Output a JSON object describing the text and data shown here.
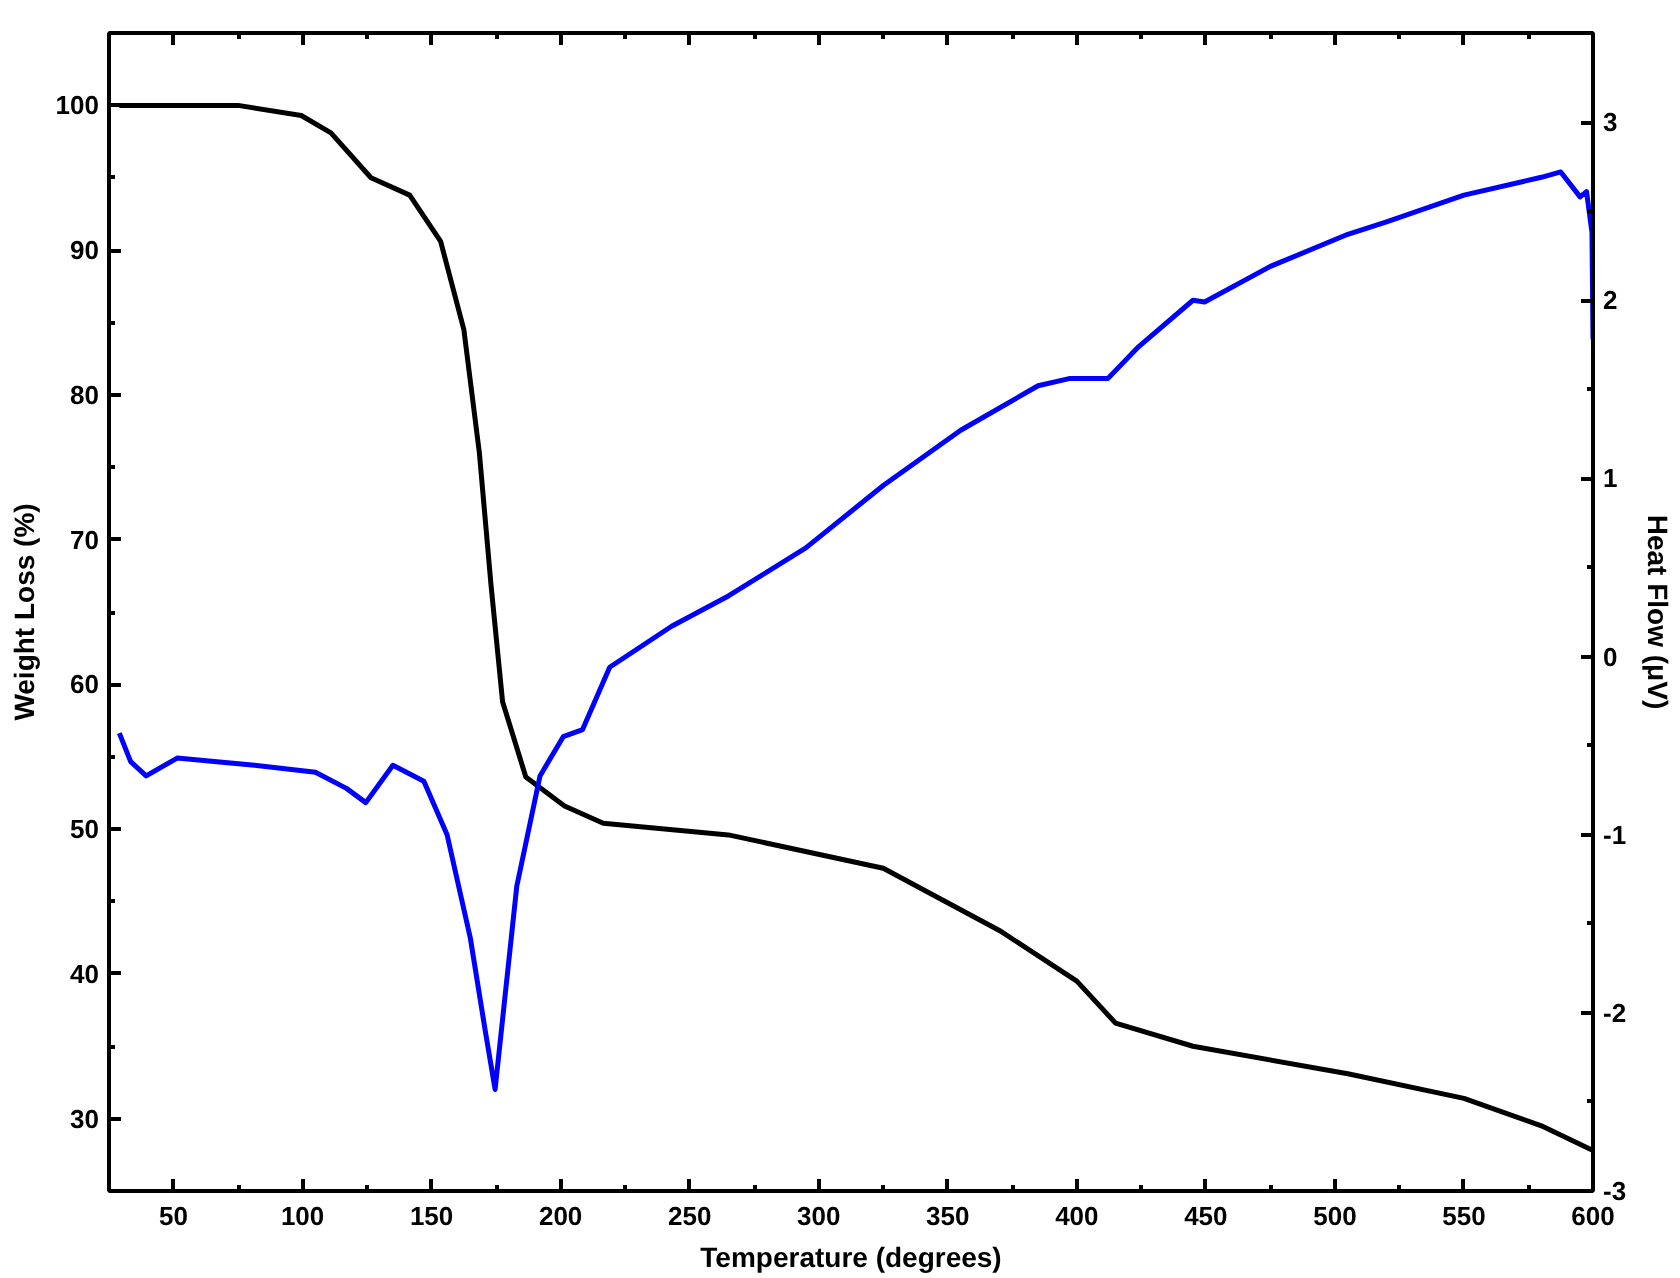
{
  "chart_data": {
    "type": "line",
    "xlabel": "Temperature (degrees)",
    "ylabel": "Weight Loss (%)",
    "y2label": "Heat Flow (μV)",
    "xlim": [
      25,
      600
    ],
    "ylim": [
      25,
      105
    ],
    "y2lim": [
      -3,
      3.5
    ],
    "xticks": [
      50,
      {
        "value": 75,
        "label": null
      },
      100,
      {
        "value": 125,
        "label": null
      },
      150,
      {
        "value": 175,
        "label": null
      },
      200,
      {
        "value": 225,
        "label": null
      },
      250,
      {
        "value": 275,
        "label": null
      },
      300,
      {
        "value": 325,
        "label": null
      },
      350,
      {
        "value": 375,
        "label": null
      },
      400,
      {
        "value": 425,
        "label": null
      },
      450,
      {
        "value": 475,
        "label": null
      },
      500,
      {
        "value": 525,
        "label": null
      },
      550,
      {
        "value": 575,
        "label": null
      },
      600
    ],
    "yticks": [
      30,
      {
        "value": 35,
        "label": null
      },
      40,
      {
        "value": 45,
        "label": null
      },
      50,
      {
        "value": 55,
        "label": null
      },
      60,
      {
        "value": 65,
        "label": null
      },
      70,
      {
        "value": 75,
        "label": null
      },
      80,
      {
        "value": 85,
        "label": null
      },
      90,
      {
        "value": 95,
        "label": null
      },
      100
    ],
    "y2ticks": [
      -3,
      {
        "value": -2.5,
        "label": null
      },
      -2,
      {
        "value": -1.5,
        "label": null
      },
      -1,
      {
        "value": -0.5,
        "label": null
      },
      0,
      {
        "value": 0.5,
        "label": null
      },
      1,
      {
        "value": 1.5,
        "label": null
      },
      2,
      {
        "value": 2.5,
        "label": null
      },
      3
    ],
    "grid": false,
    "marker": "none",
    "line_style": "solid",
    "series": [
      {
        "color": "#000000",
        "x": [
          29,
          75,
          99.5,
          111,
          126.5,
          141.5,
          153.5,
          162.5,
          168.5,
          173,
          177.5,
          186.5,
          201.5,
          216.5,
          265,
          325,
          370,
          400,
          415,
          445,
          505,
          550,
          580,
          600
        ],
        "values": [
          100,
          100,
          99.3,
          98.1,
          95,
          93.8,
          90.6,
          84.5,
          76,
          66.9,
          58.8,
          53.6,
          51.6,
          50.4,
          49.6,
          47.3,
          43,
          39.5,
          36.6,
          35,
          33.1,
          31.4,
          29.5,
          27.8
        ]
      },
      {
        "color": "#0000ff",
        "axis": "y2",
        "x": [
          29,
          33.4,
          39.4,
          51.4,
          81.4,
          105,
          117,
          124.5,
          135,
          147,
          156,
          165,
          171,
          174.6,
          178.5,
          183,
          192,
          201,
          208.5,
          219,
          243,
          265,
          295,
          325,
          355,
          385,
          397,
          412,
          424,
          445,
          449.5,
          475,
          505,
          520,
          550,
          580,
          587.5,
          595,
          597.5,
          599.6,
          600
        ],
        "values": [
          -0.43,
          -0.59,
          -0.67,
          -0.57,
          -0.61,
          -0.65,
          -0.74,
          -0.82,
          -0.61,
          -0.7,
          -1.0,
          -1.58,
          -2.12,
          -2.43,
          -1.9,
          -1.29,
          -0.67,
          -0.45,
          -0.41,
          -0.06,
          0.17,
          0.34,
          0.61,
          0.96,
          1.27,
          1.52,
          1.56,
          1.56,
          1.74,
          2.0,
          1.99,
          2.19,
          2.37,
          2.44,
          2.59,
          2.69,
          2.72,
          2.58,
          2.61,
          2.38,
          1.78
        ]
      }
    ]
  }
}
